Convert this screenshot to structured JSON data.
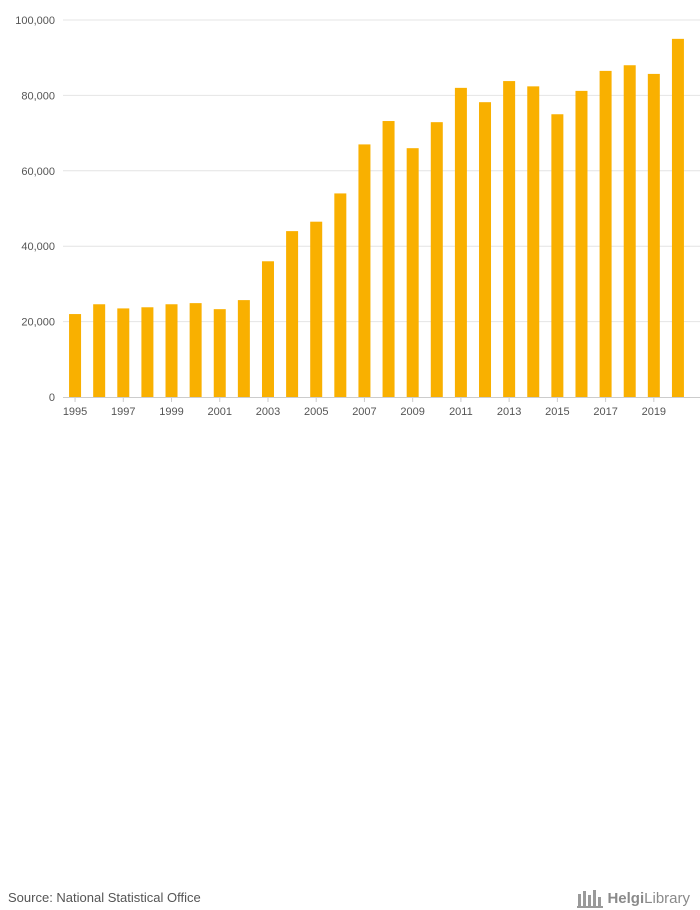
{
  "chart_data": {
    "type": "bar",
    "categories": [
      "1995",
      "1996",
      "1997",
      "1998",
      "1999",
      "2000",
      "2001",
      "2002",
      "2003",
      "2004",
      "2005",
      "2006",
      "2007",
      "2008",
      "2009",
      "2010",
      "2011",
      "2012",
      "2013",
      "2014",
      "2015",
      "2016",
      "2017",
      "2018",
      "2019",
      "2020"
    ],
    "values": [
      22000,
      24600,
      23500,
      23800,
      24600,
      24900,
      23300,
      25700,
      36000,
      44000,
      46500,
      54000,
      67000,
      73200,
      66000,
      72900,
      82000,
      78200,
      83800,
      82400,
      75000,
      81200,
      86500,
      88000,
      85700,
      95000
    ],
    "x_tick_labels": [
      "1995",
      "1997",
      "1999",
      "2001",
      "2003",
      "2005",
      "2007",
      "2009",
      "2011",
      "2013",
      "2015",
      "2017",
      "2019"
    ],
    "y_ticks": [
      0,
      20000,
      40000,
      60000,
      80000,
      100000
    ],
    "y_tick_labels": [
      "0",
      "20,000",
      "40,000",
      "60,000",
      "80,000",
      "100,000"
    ],
    "ylim": [
      0,
      100000
    ],
    "title": "",
    "xlabel": "",
    "ylabel": "",
    "grid": true,
    "bar_color": "#f9b000"
  },
  "footer": {
    "source": "Source: National Statistical Office",
    "brand_part1": "Helgi",
    "brand_part2": "Library",
    "brand_icon": "helgi-library-logo-icon"
  }
}
